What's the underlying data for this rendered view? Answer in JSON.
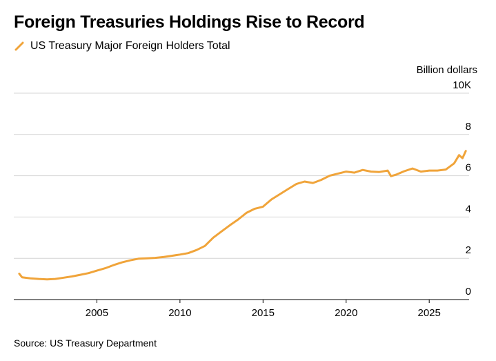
{
  "chart_data": {
    "type": "line",
    "title": "Foreign Treasuries Holdings Rise to Record",
    "unit_label": "Billion dollars",
    "xlabel": "",
    "ylabel": "",
    "xlim": [
      2000.0,
      2027.4
    ],
    "ylim": [
      0,
      10
    ],
    "y_ticks": [
      {
        "value": 0,
        "label": "0"
      },
      {
        "value": 2,
        "label": "2"
      },
      {
        "value": 4,
        "label": "4"
      },
      {
        "value": 6,
        "label": "6"
      },
      {
        "value": 8,
        "label": "8"
      },
      {
        "value": 10,
        "label": "10K"
      }
    ],
    "x_ticks": [
      {
        "value": 2005,
        "label": "2005"
      },
      {
        "value": 2010,
        "label": "2010"
      },
      {
        "value": 2015,
        "label": "2015"
      },
      {
        "value": 2020,
        "label": "2020"
      },
      {
        "value": 2025,
        "label": "2025"
      }
    ],
    "grid": true,
    "legend_position": "top-left",
    "series": [
      {
        "name": "US Treasury Major Foreign Holders Total",
        "color": "#f0a43a",
        "points": [
          [
            2000.33,
            1.25
          ],
          [
            2000.5,
            1.08
          ],
          [
            2001.0,
            1.03
          ],
          [
            2001.5,
            1.0
          ],
          [
            2002.0,
            0.98
          ],
          [
            2002.5,
            1.0
          ],
          [
            2003.0,
            1.06
          ],
          [
            2003.5,
            1.12
          ],
          [
            2004.0,
            1.2
          ],
          [
            2004.5,
            1.28
          ],
          [
            2005.0,
            1.4
          ],
          [
            2005.5,
            1.52
          ],
          [
            2006.0,
            1.67
          ],
          [
            2006.5,
            1.8
          ],
          [
            2007.0,
            1.9
          ],
          [
            2007.5,
            1.98
          ],
          [
            2008.0,
            2.0
          ],
          [
            2008.5,
            2.02
          ],
          [
            2009.0,
            2.06
          ],
          [
            2009.5,
            2.12
          ],
          [
            2010.0,
            2.18
          ],
          [
            2010.5,
            2.25
          ],
          [
            2011.0,
            2.4
          ],
          [
            2011.5,
            2.6
          ],
          [
            2012.0,
            3.0
          ],
          [
            2012.5,
            3.3
          ],
          [
            2013.0,
            3.6
          ],
          [
            2013.5,
            3.88
          ],
          [
            2014.0,
            4.2
          ],
          [
            2014.5,
            4.4
          ],
          [
            2015.0,
            4.5
          ],
          [
            2015.5,
            4.85
          ],
          [
            2016.0,
            5.1
          ],
          [
            2016.5,
            5.35
          ],
          [
            2017.0,
            5.6
          ],
          [
            2017.5,
            5.72
          ],
          [
            2018.0,
            5.65
          ],
          [
            2018.5,
            5.8
          ],
          [
            2019.0,
            6.0
          ],
          [
            2019.5,
            6.1
          ],
          [
            2020.0,
            6.2
          ],
          [
            2020.5,
            6.15
          ],
          [
            2021.0,
            6.28
          ],
          [
            2021.5,
            6.2
          ],
          [
            2022.0,
            6.18
          ],
          [
            2022.5,
            6.25
          ],
          [
            2022.7,
            5.98
          ],
          [
            2023.0,
            6.05
          ],
          [
            2023.5,
            6.22
          ],
          [
            2024.0,
            6.35
          ],
          [
            2024.5,
            6.2
          ],
          [
            2025.0,
            6.25
          ],
          [
            2025.5,
            6.25
          ],
          [
            2026.0,
            6.3
          ],
          [
            2026.5,
            6.6
          ],
          [
            2026.8,
            7.0
          ],
          [
            2027.0,
            6.85
          ],
          [
            2027.2,
            7.2
          ]
        ]
      }
    ],
    "source": "Source: US Treasury Department"
  }
}
